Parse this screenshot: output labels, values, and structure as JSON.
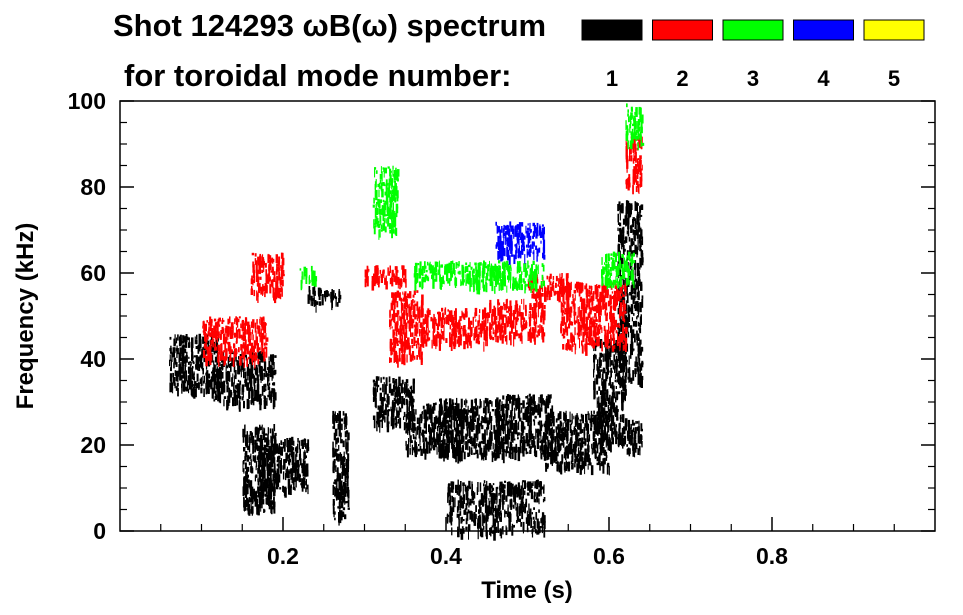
{
  "chart_data": {
    "type": "scatter",
    "title_line1": "Shot 124293 ωB(ω) spectrum",
    "title_line2": "for toroidal mode number:",
    "xlabel": "Time (s)",
    "ylabel": "Frequency (kHz)",
    "xlim": [
      0.0,
      1.0
    ],
    "ylim": [
      0,
      100
    ],
    "xticks": [
      0.2,
      0.4,
      0.6,
      0.8
    ],
    "xtick_labels": [
      "0.2",
      "0.4",
      "0.6",
      "0.8"
    ],
    "yticks": [
      0,
      20,
      40,
      60,
      80,
      100
    ],
    "ytick_labels": [
      "0",
      "20",
      "40",
      "60",
      "80",
      "100"
    ],
    "legend": {
      "entries": [
        {
          "label": "1",
          "color": "#000000"
        },
        {
          "label": "2",
          "color": "#ff0000"
        },
        {
          "label": "3",
          "color": "#00ff00"
        },
        {
          "label": "4",
          "color": "#0000ff"
        },
        {
          "label": "5",
          "color": "#ffff00"
        }
      ]
    },
    "series": [
      {
        "name": "n=1",
        "color": "#000000",
        "clusters": [
          {
            "x": [
              0.06,
              0.12
            ],
            "y": [
              33,
              46
            ]
          },
          {
            "x": [
              0.11,
              0.19
            ],
            "y": [
              30,
              42
            ]
          },
          {
            "x": [
              0.15,
              0.19
            ],
            "y": [
              5,
              25
            ]
          },
          {
            "x": [
              0.17,
              0.23
            ],
            "y": [
              10,
              22
            ]
          },
          {
            "x": [
              0.23,
              0.27
            ],
            "y": [
              53,
              57
            ]
          },
          {
            "x": [
              0.26,
              0.28
            ],
            "y": [
              3,
              28
            ]
          },
          {
            "x": [
              0.31,
              0.36
            ],
            "y": [
              25,
              36
            ]
          },
          {
            "x": [
              0.35,
              0.42
            ],
            "y": [
              19,
              30
            ]
          },
          {
            "x": [
              0.39,
              0.47
            ],
            "y": [
              18,
              31
            ]
          },
          {
            "x": [
              0.46,
              0.53
            ],
            "y": [
              18,
              32
            ]
          },
          {
            "x": [
              0.52,
              0.6
            ],
            "y": [
              15,
              28
            ]
          },
          {
            "x": [
              0.58,
              0.62
            ],
            "y": [
              20,
              45
            ]
          },
          {
            "x": [
              0.61,
              0.64
            ],
            "y": [
              35,
              77
            ]
          },
          {
            "x": [
              0.62,
              0.64
            ],
            "y": [
              18,
              26
            ]
          },
          {
            "x": [
              0.4,
              0.52
            ],
            "y": [
              0,
              12
            ]
          }
        ]
      },
      {
        "name": "n=2",
        "color": "#ff0000",
        "clusters": [
          {
            "x": [
              0.1,
              0.18
            ],
            "y": [
              40,
              50
            ]
          },
          {
            "x": [
              0.16,
              0.2
            ],
            "y": [
              55,
              65
            ]
          },
          {
            "x": [
              0.3,
              0.35
            ],
            "y": [
              58,
              62
            ]
          },
          {
            "x": [
              0.33,
              0.37
            ],
            "y": [
              40,
              56
            ]
          },
          {
            "x": [
              0.37,
              0.45
            ],
            "y": [
              44,
              52
            ]
          },
          {
            "x": [
              0.45,
              0.52
            ],
            "y": [
              45,
              54
            ]
          },
          {
            "x": [
              0.5,
              0.55
            ],
            "y": [
              55,
              60
            ]
          },
          {
            "x": [
              0.54,
              0.62
            ],
            "y": [
              43,
              58
            ]
          },
          {
            "x": [
              0.62,
              0.64
            ],
            "y": [
              80,
              92
            ]
          }
        ]
      },
      {
        "name": "n=3",
        "color": "#00ff00",
        "clusters": [
          {
            "x": [
              0.31,
              0.34
            ],
            "y": [
              70,
              85
            ]
          },
          {
            "x": [
              0.36,
              0.44
            ],
            "y": [
              58,
              63
            ]
          },
          {
            "x": [
              0.43,
              0.52
            ],
            "y": [
              57,
              63
            ]
          },
          {
            "x": [
              0.59,
              0.63
            ],
            "y": [
              58,
              65
            ]
          },
          {
            "x": [
              0.22,
              0.24
            ],
            "y": [
              58,
              62
            ]
          },
          {
            "x": [
              0.62,
              0.64
            ],
            "y": [
              90,
              100
            ]
          }
        ]
      },
      {
        "name": "n=4",
        "color": "#0000ff",
        "clusters": [
          {
            "x": [
              0.46,
              0.52
            ],
            "y": [
              64,
              72
            ]
          }
        ]
      },
      {
        "name": "n=5",
        "color": "#ffff00",
        "clusters": []
      }
    ]
  }
}
